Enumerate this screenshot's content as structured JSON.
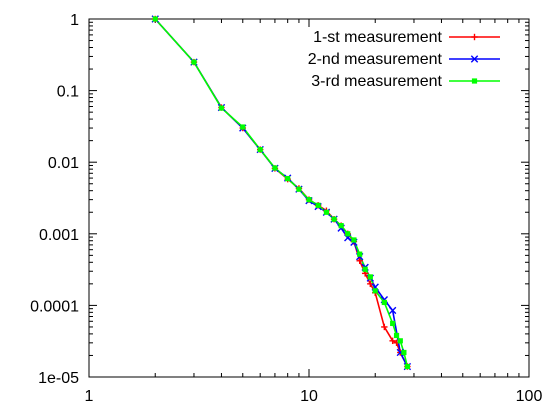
{
  "chart_data": {
    "type": "line",
    "title": "",
    "xlabel": "",
    "ylabel": "",
    "x_scale": "log",
    "y_scale": "log",
    "xlim": [
      1,
      100
    ],
    "ylim": [
      1e-05,
      1
    ],
    "x_ticks": [
      {
        "value": 1,
        "label": "1"
      },
      {
        "value": 10,
        "label": "10"
      },
      {
        "value": 100,
        "label": "100"
      }
    ],
    "y_ticks": [
      {
        "value": 1,
        "label": "1"
      },
      {
        "value": 0.1,
        "label": "0.1"
      },
      {
        "value": 0.01,
        "label": "0.01"
      },
      {
        "value": 0.001,
        "label": "0.001"
      },
      {
        "value": 0.0001,
        "label": "0.0001"
      },
      {
        "value": 1e-05,
        "label": "1e-05"
      }
    ],
    "grid": false,
    "legend_position": "top-right",
    "series": [
      {
        "name": "1-st measurement",
        "color": "#ff0000",
        "marker": "plus",
        "x": [
          2,
          3,
          4,
          5,
          6,
          7,
          8,
          9,
          10,
          11,
          12,
          13,
          14,
          15,
          16,
          17,
          18,
          19,
          20,
          22,
          24,
          25,
          26,
          28
        ],
        "y": [
          1,
          0.25,
          0.058,
          0.03,
          0.015,
          0.0082,
          0.0058,
          0.0043,
          0.003,
          0.0025,
          0.0021,
          0.0016,
          0.0013,
          0.001,
          0.00078,
          0.00042,
          0.00028,
          0.0002,
          0.00015,
          5e-05,
          3.2e-05,
          3e-05,
          2.2e-05,
          1.4e-05
        ]
      },
      {
        "name": "2-nd measurement",
        "color": "#0000ff",
        "marker": "x",
        "x": [
          2,
          3,
          4,
          5,
          6,
          7,
          8,
          9,
          10,
          11,
          12,
          13,
          14,
          15,
          16,
          17,
          18,
          19,
          20,
          22,
          24,
          26,
          28
        ],
        "y": [
          1,
          0.25,
          0.058,
          0.03,
          0.015,
          0.0082,
          0.006,
          0.0042,
          0.0029,
          0.0024,
          0.002,
          0.0016,
          0.0012,
          0.00088,
          0.00076,
          0.00048,
          0.00034,
          0.00024,
          0.00018,
          0.00012,
          8.5e-05,
          2.2e-05,
          1.4e-05
        ]
      },
      {
        "name": "3-rd measurement",
        "color": "#00ff00",
        "marker": "square",
        "x": [
          2,
          3,
          4,
          5,
          6,
          7,
          8,
          9,
          10,
          11,
          12,
          13,
          14,
          15,
          16,
          17,
          18,
          19,
          20,
          22,
          24,
          25,
          26,
          27,
          28
        ],
        "y": [
          1,
          0.25,
          0.057,
          0.031,
          0.015,
          0.0083,
          0.0059,
          0.0042,
          0.003,
          0.0025,
          0.002,
          0.0016,
          0.0013,
          0.001,
          0.00082,
          0.00052,
          0.00032,
          0.00025,
          0.00016,
          0.00011,
          5.6e-05,
          3.8e-05,
          3.2e-05,
          2.2e-05,
          1.4e-05
        ]
      }
    ]
  }
}
